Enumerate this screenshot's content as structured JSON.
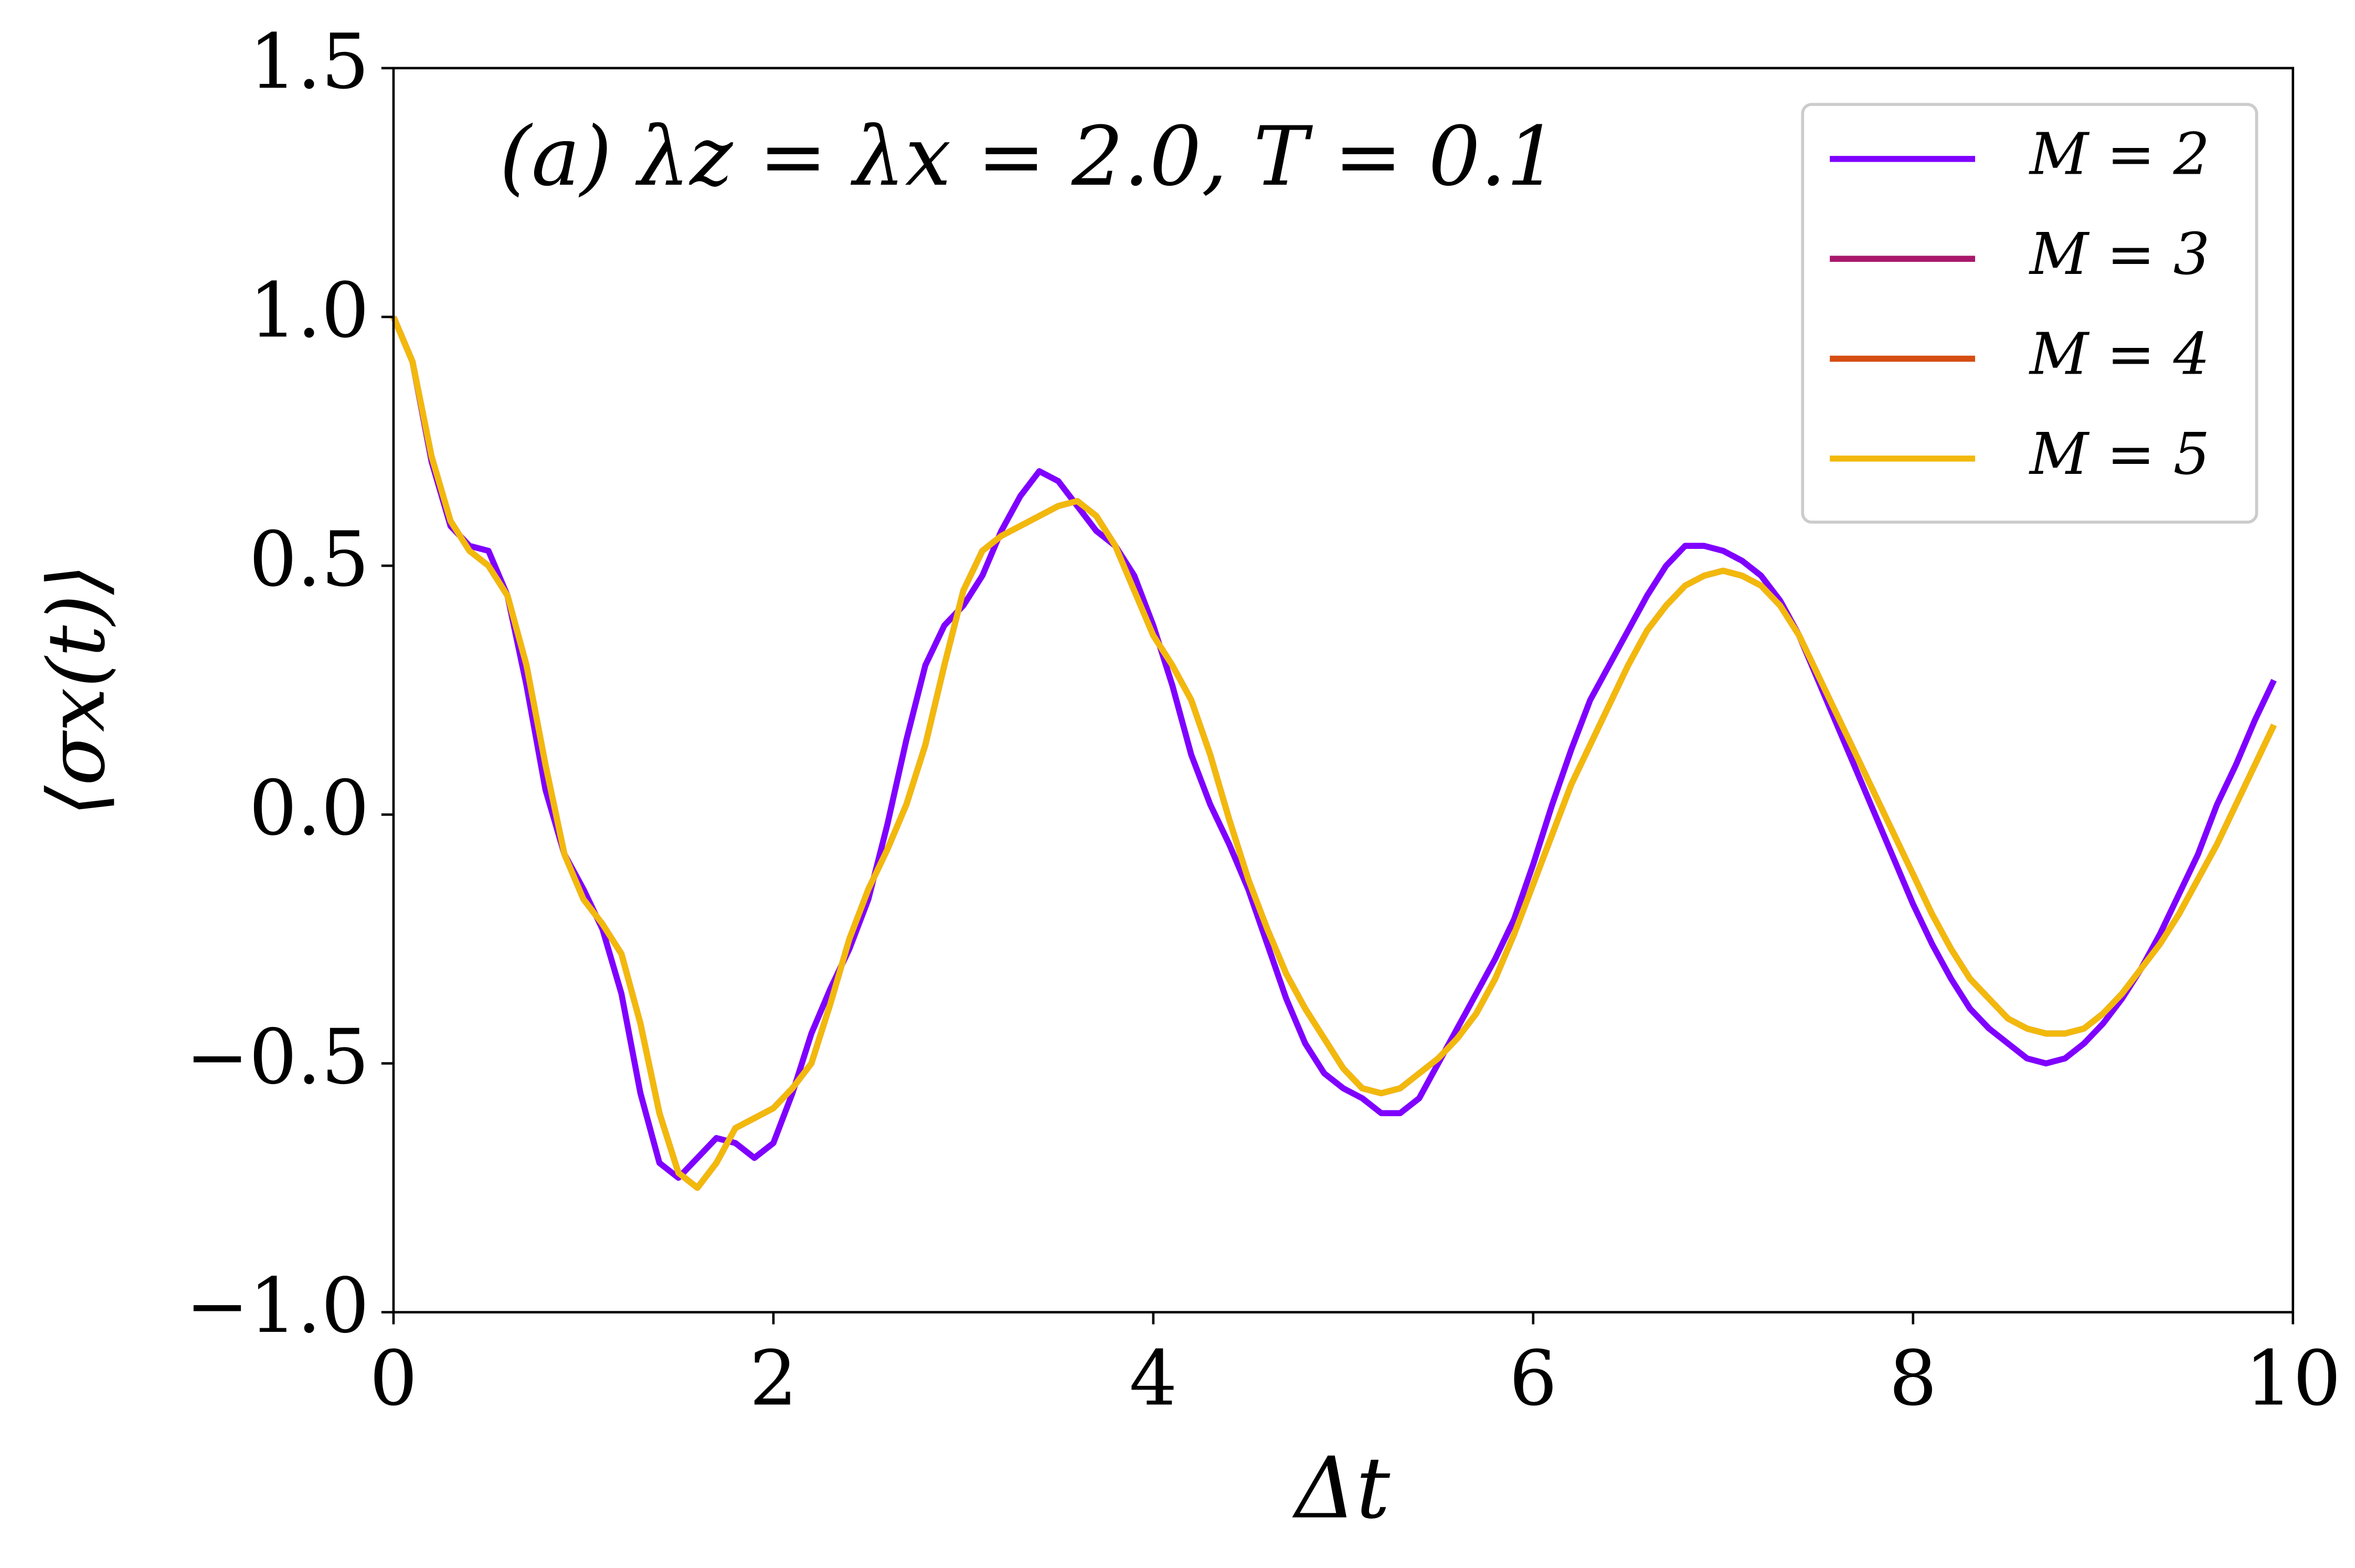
{
  "chart_data": {
    "type": "line",
    "annotation": "(a) λz = λx = 2.0, T = 0.1",
    "xlabel": "Δt",
    "ylabel": "⟨σx(t)⟩",
    "xlim": [
      0,
      10
    ],
    "ylim": [
      -1.0,
      1.5
    ],
    "xticks": [
      0,
      2,
      4,
      6,
      8,
      10
    ],
    "yticks": [
      1.5,
      {
        "value": 1,
        "label": "1.0"
      },
      0.5,
      {
        "value": 0,
        "label": "0.0"
      },
      {
        "value": -0.5,
        "label": "−0.5"
      },
      {
        "value": -1,
        "label": "−1.0"
      }
    ],
    "legend": "upper right",
    "x": [
      0,
      0.1,
      0.2,
      0.3,
      0.4,
      0.5,
      0.6,
      0.7,
      0.8,
      0.9,
      1,
      1.1,
      1.2,
      1.3,
      1.4,
      1.5,
      1.6,
      1.7,
      1.8,
      1.9,
      2,
      2.1,
      2.2,
      2.3,
      2.4,
      2.5,
      2.6,
      2.7,
      2.8,
      2.9,
      3,
      3.1,
      3.2,
      3.3,
      3.4,
      3.5,
      3.6,
      3.7,
      3.8,
      3.9,
      4,
      4.1,
      4.2,
      4.3,
      4.4,
      4.5,
      4.6,
      4.7,
      4.8,
      4.9,
      5,
      5.1,
      5.2,
      5.3,
      5.4,
      5.5,
      5.6,
      5.7,
      5.8,
      5.9,
      6,
      6.1,
      6.2,
      6.3,
      6.4,
      6.5,
      6.6,
      6.7,
      6.8,
      6.9,
      7,
      7.1,
      7.2,
      7.3,
      7.4,
      7.5,
      7.6,
      7.7,
      7.8,
      7.9,
      8,
      8.1,
      8.2,
      8.3,
      8.4,
      8.5,
      8.6,
      8.7,
      8.8,
      8.9,
      9,
      9.1,
      9.2,
      9.3,
      9.4,
      9.5,
      9.6,
      9.7,
      9.8,
      9.9
    ],
    "series": [
      {
        "name": "M = 2",
        "color": "#7f00ff",
        "values": [
          1.0,
          0.91,
          0.71,
          0.58,
          0.54,
          0.53,
          0.44,
          0.26,
          0.05,
          -0.08,
          -0.15,
          -0.23,
          -0.36,
          -0.56,
          -0.7,
          -0.73,
          -0.69,
          -0.65,
          -0.66,
          -0.69,
          -0.66,
          -0.56,
          -0.44,
          -0.35,
          -0.27,
          -0.17,
          -0.02,
          0.15,
          0.3,
          0.38,
          0.42,
          0.48,
          0.57,
          0.64,
          0.69,
          0.67,
          0.62,
          0.57,
          0.54,
          0.48,
          0.38,
          0.26,
          0.12,
          0.02,
          -0.06,
          -0.15,
          -0.26,
          -0.37,
          -0.46,
          -0.52,
          -0.55,
          -0.57,
          -0.6,
          -0.6,
          -0.57,
          -0.5,
          -0.43,
          -0.36,
          -0.29,
          -0.21,
          -0.1,
          0.02,
          0.13,
          0.23,
          0.3,
          0.37,
          0.44,
          0.5,
          0.54,
          0.54,
          0.53,
          0.51,
          0.48,
          0.43,
          0.36,
          0.27,
          0.18,
          0.09,
          0.0,
          -0.09,
          -0.18,
          -0.26,
          -0.33,
          -0.39,
          -0.43,
          -0.46,
          -0.49,
          -0.5,
          -0.49,
          -0.46,
          -0.42,
          -0.37,
          -0.31,
          -0.24,
          -0.16,
          -0.08,
          0.02,
          0.1,
          0.19,
          0.27
        ]
      },
      {
        "name": "M = 3",
        "color": "#a8186c",
        "values": [
          1.0,
          0.91,
          0.72,
          0.59,
          0.53,
          0.5,
          0.44,
          0.3,
          0.1,
          -0.08,
          -0.17,
          -0.22,
          -0.28,
          -0.42,
          -0.6,
          -0.72,
          -0.75,
          -0.7,
          -0.63,
          -0.61,
          -0.59,
          -0.55,
          -0.5,
          -0.38,
          -0.25,
          -0.15,
          -0.07,
          0.02,
          0.14,
          0.3,
          0.45,
          0.53,
          0.56,
          0.58,
          0.6,
          0.62,
          0.63,
          0.6,
          0.54,
          0.45,
          0.36,
          0.3,
          0.23,
          0.12,
          -0.01,
          -0.13,
          -0.23,
          -0.32,
          -0.39,
          -0.45,
          -0.51,
          -0.55,
          -0.56,
          -0.55,
          -0.52,
          -0.49,
          -0.45,
          -0.4,
          -0.33,
          -0.24,
          -0.14,
          -0.04,
          0.06,
          0.14,
          0.22,
          0.3,
          0.37,
          0.42,
          0.46,
          0.48,
          0.49,
          0.48,
          0.46,
          0.42,
          0.36,
          0.28,
          0.2,
          0.12,
          0.04,
          -0.04,
          -0.12,
          -0.2,
          -0.27,
          -0.33,
          -0.37,
          -0.41,
          -0.43,
          -0.44,
          -0.44,
          -0.43,
          -0.4,
          -0.36,
          -0.31,
          -0.26,
          -0.2,
          -0.13,
          -0.06,
          0.02,
          0.1,
          0.18
        ]
      },
      {
        "name": "M = 4",
        "color": "#d64d12",
        "values": [
          1.0,
          0.91,
          0.72,
          0.59,
          0.53,
          0.5,
          0.44,
          0.3,
          0.1,
          -0.08,
          -0.17,
          -0.22,
          -0.28,
          -0.42,
          -0.6,
          -0.72,
          -0.75,
          -0.7,
          -0.63,
          -0.61,
          -0.59,
          -0.55,
          -0.5,
          -0.38,
          -0.25,
          -0.15,
          -0.07,
          0.02,
          0.14,
          0.3,
          0.45,
          0.53,
          0.56,
          0.58,
          0.6,
          0.62,
          0.63,
          0.6,
          0.54,
          0.45,
          0.36,
          0.3,
          0.23,
          0.12,
          -0.01,
          -0.13,
          -0.23,
          -0.32,
          -0.39,
          -0.45,
          -0.51,
          -0.55,
          -0.56,
          -0.55,
          -0.52,
          -0.49,
          -0.45,
          -0.4,
          -0.33,
          -0.24,
          -0.14,
          -0.04,
          0.06,
          0.14,
          0.22,
          0.3,
          0.37,
          0.42,
          0.46,
          0.48,
          0.49,
          0.48,
          0.46,
          0.42,
          0.36,
          0.28,
          0.2,
          0.12,
          0.04,
          -0.04,
          -0.12,
          -0.2,
          -0.27,
          -0.33,
          -0.37,
          -0.41,
          -0.43,
          -0.44,
          -0.44,
          -0.43,
          -0.4,
          -0.36,
          -0.31,
          -0.26,
          -0.2,
          -0.13,
          -0.06,
          0.02,
          0.1,
          0.18
        ]
      },
      {
        "name": "M = 5",
        "color": "#f2b90c",
        "values": [
          1.0,
          0.91,
          0.72,
          0.59,
          0.53,
          0.5,
          0.44,
          0.3,
          0.1,
          -0.08,
          -0.17,
          -0.22,
          -0.28,
          -0.42,
          -0.6,
          -0.72,
          -0.75,
          -0.7,
          -0.63,
          -0.61,
          -0.59,
          -0.55,
          -0.5,
          -0.38,
          -0.25,
          -0.15,
          -0.07,
          0.02,
          0.14,
          0.3,
          0.45,
          0.53,
          0.56,
          0.58,
          0.6,
          0.62,
          0.63,
          0.6,
          0.54,
          0.45,
          0.36,
          0.3,
          0.23,
          0.12,
          -0.01,
          -0.13,
          -0.23,
          -0.32,
          -0.39,
          -0.45,
          -0.51,
          -0.55,
          -0.56,
          -0.55,
          -0.52,
          -0.49,
          -0.45,
          -0.4,
          -0.33,
          -0.24,
          -0.14,
          -0.04,
          0.06,
          0.14,
          0.22,
          0.3,
          0.37,
          0.42,
          0.46,
          0.48,
          0.49,
          0.48,
          0.46,
          0.42,
          0.36,
          0.28,
          0.2,
          0.12,
          0.04,
          -0.04,
          -0.12,
          -0.2,
          -0.27,
          -0.33,
          -0.37,
          -0.41,
          -0.43,
          -0.44,
          -0.44,
          -0.43,
          -0.4,
          -0.36,
          -0.31,
          -0.26,
          -0.2,
          -0.13,
          -0.06,
          0.02,
          0.1,
          0.18
        ]
      }
    ]
  }
}
